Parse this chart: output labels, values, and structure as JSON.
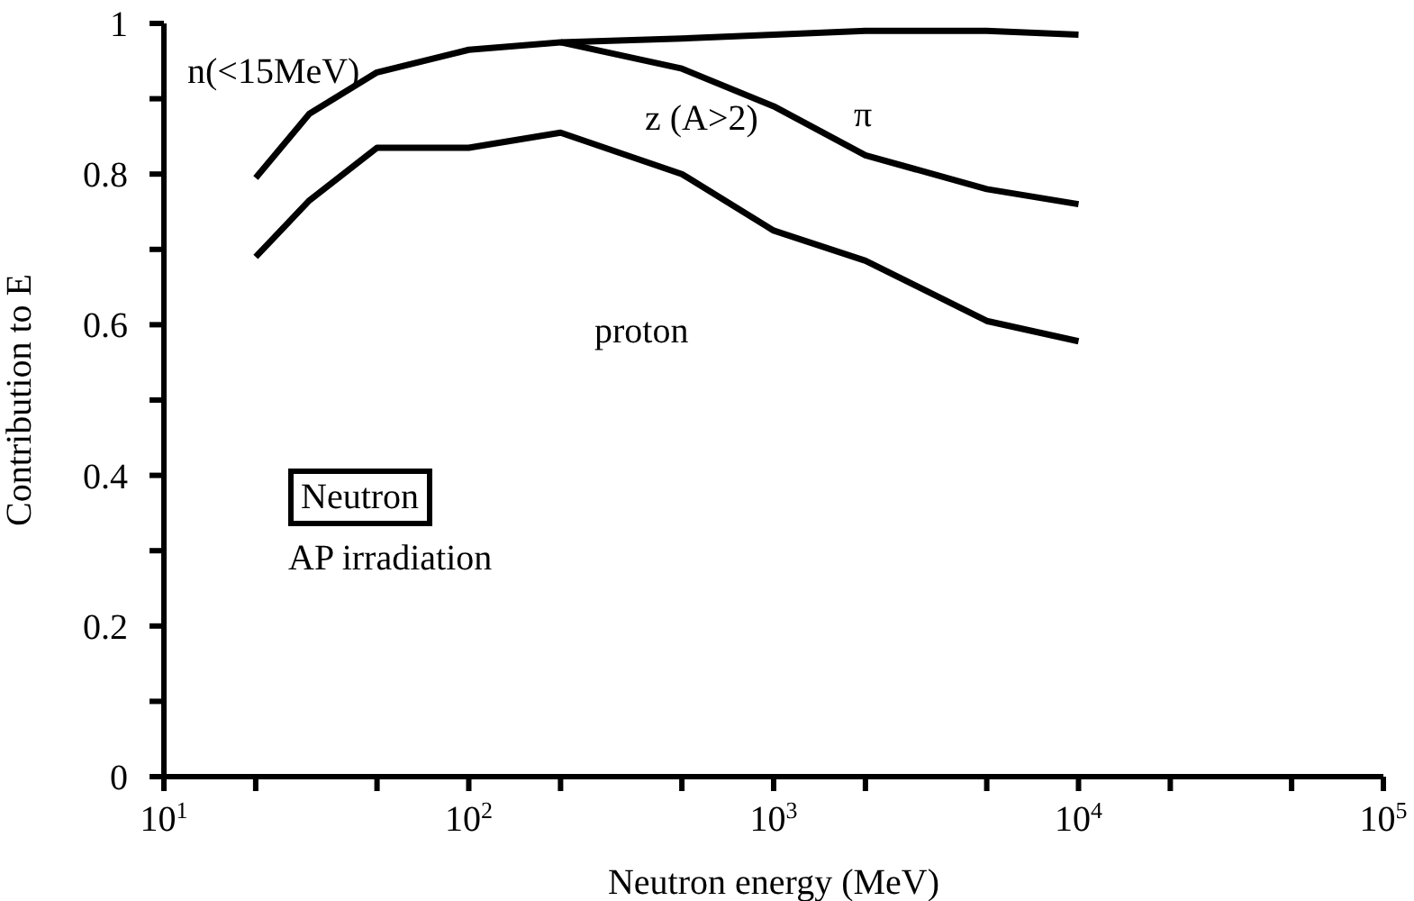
{
  "chart_data": {
    "type": "line",
    "xlabel": "Neutron energy  (MeV)",
    "ylabel": "Contribution to E",
    "log": "x",
    "xlim": [
      10,
      100000
    ],
    "xticks": [
      {
        "value": 10,
        "label": "10$^{1}$"
      },
      {
        "value": 20,
        "label": null
      },
      {
        "value": 50,
        "label": null
      },
      {
        "value": 100,
        "label": "10$^{2}$"
      },
      {
        "value": 200,
        "label": null
      },
      {
        "value": 500,
        "label": null
      },
      {
        "value": 1000,
        "label": "10$^{3}$"
      },
      {
        "value": 2000,
        "label": null
      },
      {
        "value": 5000,
        "label": null
      },
      {
        "value": 10000,
        "label": "10$^{4}$"
      },
      {
        "value": 20000,
        "label": null
      },
      {
        "value": 50000,
        "label": null
      },
      {
        "value": 100000,
        "label": "10$^{5}$"
      }
    ],
    "ylim": [
      0,
      1
    ],
    "yticks": [
      0,
      {
        "value": 0.1,
        "label": null
      },
      0.2,
      {
        "value": 0.3,
        "label": null
      },
      0.4,
      {
        "value": 0.5,
        "label": null
      },
      0.6,
      {
        "value": 0.7,
        "label": null
      },
      0.8,
      {
        "value": 0.9,
        "label": null
      },
      1
    ],
    "marker": "none",
    "line_style": "solid",
    "series": [
      {
        "color": "#000000",
        "x": [
          20,
          30,
          50,
          100,
          200,
          500,
          1000,
          2000,
          5000,
          10000
        ],
        "values": [
          0.795,
          0.88,
          0.935,
          0.965,
          0.975,
          0.98,
          0.985,
          0.99,
          0.99,
          0.985
        ]
      },
      {
        "color": "#000000",
        "x": [
          200,
          500,
          1000,
          2000,
          5000,
          10000
        ],
        "values": [
          0.975,
          0.94,
          0.89,
          0.825,
          0.78,
          0.76
        ]
      },
      {
        "color": "#000000",
        "x": [
          20,
          30,
          50,
          100,
          200,
          500,
          1000,
          2000,
          5000,
          10000
        ],
        "values": [
          0.69,
          0.765,
          0.835,
          0.835,
          0.855,
          0.8,
          0.725,
          0.685,
          0.605,
          0.578
        ]
      }
    ],
    "annotations": [
      "n(<15MeV)",
      "z (A>2)",
      "π",
      "proton",
      "Neutron",
      "AP irradiation"
    ]
  }
}
